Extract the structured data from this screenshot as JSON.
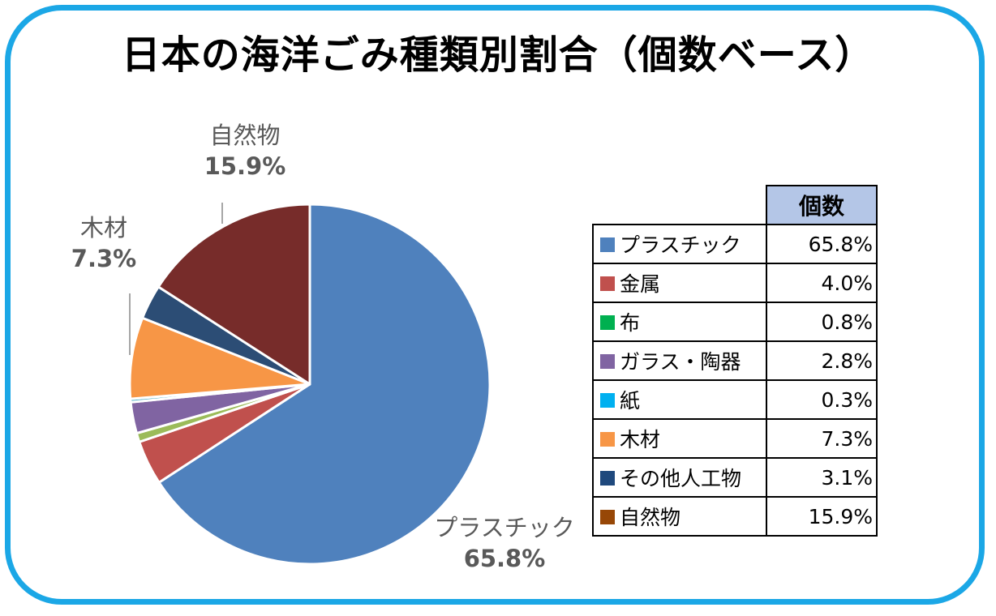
{
  "title": "日本の海洋ごみ種類別割合（個数ベース）",
  "chart_data": {
    "type": "pie",
    "start_angle_deg": 0,
    "direction": "clockwise",
    "slices": [
      {
        "name": "プラスチック",
        "value": 65.8,
        "label": "65.8%",
        "color": "#4f81bd"
      },
      {
        "name": "金属",
        "value": 4.0,
        "label": "4.0%",
        "color": "#c0504d"
      },
      {
        "name": "布",
        "value": 0.8,
        "label": "0.8%",
        "color": "#9bbb59"
      },
      {
        "name": "ガラス・陶器",
        "value": 2.8,
        "label": "2.8%",
        "color": "#8064a2"
      },
      {
        "name": "紙",
        "value": 0.3,
        "label": "0.3%",
        "color": "#4bacc6"
      },
      {
        "name": "木材",
        "value": 7.3,
        "label": "7.3%",
        "color": "#f79646"
      },
      {
        "name": "その他人工物",
        "value": 3.1,
        "label": "3.1%",
        "color": "#2c4d75"
      },
      {
        "name": "自然物",
        "value": 15.9,
        "label": "15.9%",
        "color": "#772c2a"
      }
    ],
    "pie_labels": [
      {
        "name": "自然物",
        "pct": "15.9%"
      },
      {
        "name": "木材",
        "pct": "7.3%"
      },
      {
        "name": "プラスチック",
        "pct": "65.8%"
      }
    ],
    "table": {
      "header": "個数",
      "rows": [
        {
          "name": "プラスチック",
          "value": "65.8%",
          "color": "#4f81bd"
        },
        {
          "name": "金属",
          "value": "4.0%",
          "color": "#c0504d"
        },
        {
          "name": "布",
          "value": "0.8%",
          "color": "#00b050"
        },
        {
          "name": "ガラス・陶器",
          "value": "2.8%",
          "color": "#8064a2"
        },
        {
          "name": "紙",
          "value": "0.3%",
          "color": "#00b0f0"
        },
        {
          "name": "木材",
          "value": "7.3%",
          "color": "#f79646"
        },
        {
          "name": "その他人工物",
          "value": "3.1%",
          "color": "#1f497d"
        },
        {
          "name": "自然物",
          "value": "15.9%",
          "color": "#974706"
        }
      ]
    }
  }
}
